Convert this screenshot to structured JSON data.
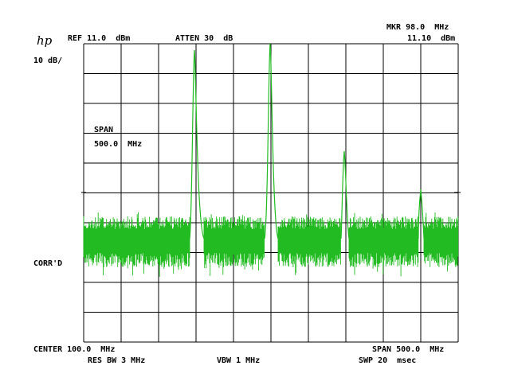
{
  "header": {
    "logo": "hp",
    "ref": "REF 11.0  dBm",
    "atten": "ATTEN 30  dB",
    "marker_freq": "MKR 98.0  MHz",
    "marker_level": "11.10  dBm",
    "scale": "10 dB/"
  },
  "annotations": {
    "span_label": "SPAN",
    "span_value": "500.0  MHz",
    "corrected": "CORR'D"
  },
  "footer": {
    "center": "CENTER 100.0  MHz",
    "span": "SPAN 500.0  MHz",
    "res_bw": "RES BW 3 MHz",
    "vbw": "VBW 1 MHz",
    "sweep": "SWP 20  msec"
  }
}
